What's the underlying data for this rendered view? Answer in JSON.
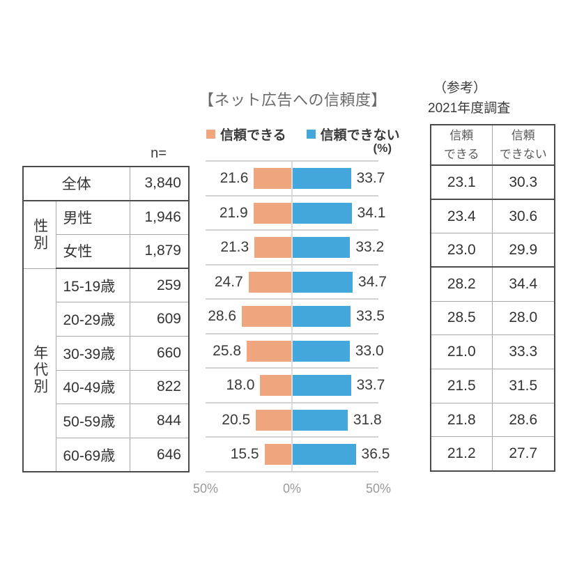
{
  "title": "【ネット広告への信頼度】",
  "legend": {
    "trust_label": "信頼できる",
    "distrust_label": "信頼できない",
    "unit": "(%)"
  },
  "colors": {
    "trust": "#EFA57E",
    "distrust": "#44A7DB",
    "gridline": "#d2d2d2",
    "table_border_thick": "#4a4a4a",
    "table_border_thin": "#a8a8a8"
  },
  "left_table": {
    "n_header": "n=",
    "groups": [
      {
        "group_label": "",
        "rows": [
          {
            "label": "全体",
            "n": "3,840"
          }
        ]
      },
      {
        "group_label": "性別",
        "rows": [
          {
            "label": "男性",
            "n": "1,946"
          },
          {
            "label": "女性",
            "n": "1,879"
          }
        ]
      },
      {
        "group_label": "年代別",
        "rows": [
          {
            "label": "15-19歳",
            "n": "259"
          },
          {
            "label": "20-29歳",
            "n": "609"
          },
          {
            "label": "30-39歳",
            "n": "660"
          },
          {
            "label": "40-49歳",
            "n": "822"
          },
          {
            "label": "50-59歳",
            "n": "844"
          },
          {
            "label": "60-69歳",
            "n": "646"
          }
        ]
      }
    ]
  },
  "chart_data": {
    "type": "bar",
    "variant": "diverging-horizontal",
    "title": "【ネット広告への信頼度】",
    "unit": "(%)",
    "categories": [
      "全体",
      "男性",
      "女性",
      "15-19歳",
      "20-29歳",
      "30-39歳",
      "40-49歳",
      "50-59歳",
      "60-69歳"
    ],
    "series": [
      {
        "name": "信頼できる",
        "color": "#EFA57E",
        "side": "left",
        "values": [
          "21.6",
          "21.9",
          "21.3",
          "24.7",
          "28.6",
          "25.8",
          "18.0",
          "20.5",
          "15.5"
        ]
      },
      {
        "name": "信頼できない",
        "color": "#44A7DB",
        "side": "right",
        "values": [
          "33.7",
          "34.1",
          "33.2",
          "34.7",
          "33.5",
          "33.0",
          "33.7",
          "31.8",
          "36.5"
        ]
      }
    ],
    "axis_labels": {
      "left": "50%",
      "center": "0%",
      "right": "50%"
    },
    "xlim_pct": [
      -50,
      50
    ],
    "grid": "horizontal-row-separators"
  },
  "reference": {
    "caption_line1": "（参考）",
    "caption_line2": "2021年度調査",
    "table": {
      "headers": [
        "信頼\nできる",
        "信頼\nできない"
      ],
      "rows": [
        [
          "23.1",
          "30.3"
        ],
        [
          "23.4",
          "30.6"
        ],
        [
          "23.0",
          "29.9"
        ],
        [
          "28.2",
          "34.4"
        ],
        [
          "28.5",
          "28.0"
        ],
        [
          "21.0",
          "33.3"
        ],
        [
          "21.5",
          "31.5"
        ],
        [
          "21.8",
          "28.6"
        ],
        [
          "21.2",
          "27.7"
        ]
      ]
    }
  }
}
